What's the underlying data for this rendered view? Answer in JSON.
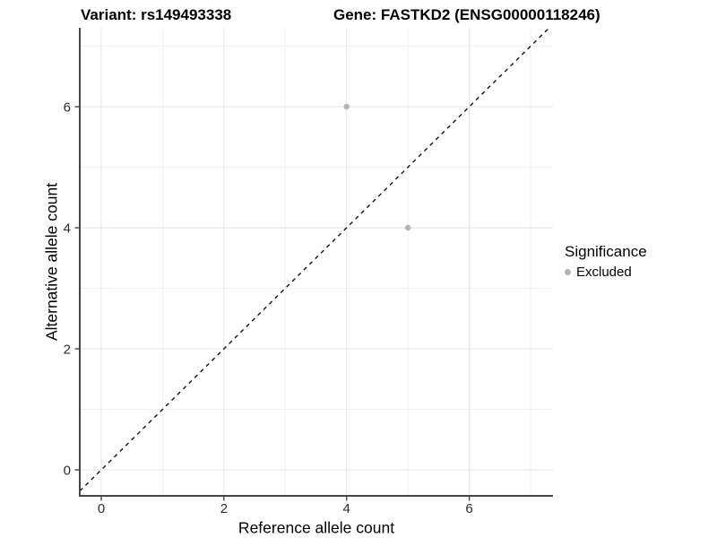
{
  "figure": {
    "kind": "scatter-plot-screenshot"
  },
  "chart_data": {
    "type": "scatter",
    "title_left": "Variant: rs149493338",
    "title_right": "Gene: FASTKD2 (ENSG00000118246)",
    "xlabel": "Reference allele count",
    "ylabel": "Alternative allele count",
    "x_range": [
      0,
      7
    ],
    "y_range": [
      0,
      7
    ],
    "x_ticks": [
      0,
      2,
      4,
      6
    ],
    "y_ticks": [
      0,
      2,
      4,
      6
    ],
    "x_minor_gridlines": [
      1,
      3,
      5,
      7
    ],
    "y_minor_gridlines": [
      1,
      3,
      5,
      7
    ],
    "grid": "major+minor",
    "reference_line": {
      "slope": 1,
      "intercept": 0,
      "style": "dashed",
      "color": "#111111"
    },
    "series": [
      {
        "name": "Excluded",
        "color": "#b4b4b4",
        "points": [
          [
            4,
            6
          ],
          [
            5,
            4
          ]
        ]
      }
    ],
    "legend": {
      "title": "Significance",
      "position": "right",
      "items": [
        {
          "label": "Excluded",
          "color": "#b4b4b4",
          "marker": "circle"
        }
      ]
    },
    "colors": {
      "background": "#ffffff",
      "major_grid": "#e3e3e3",
      "minor_grid": "#f0f0f0",
      "axis_line": "#454545",
      "tick_label": "#2b2b2b",
      "point": "#b4b4b4"
    }
  }
}
